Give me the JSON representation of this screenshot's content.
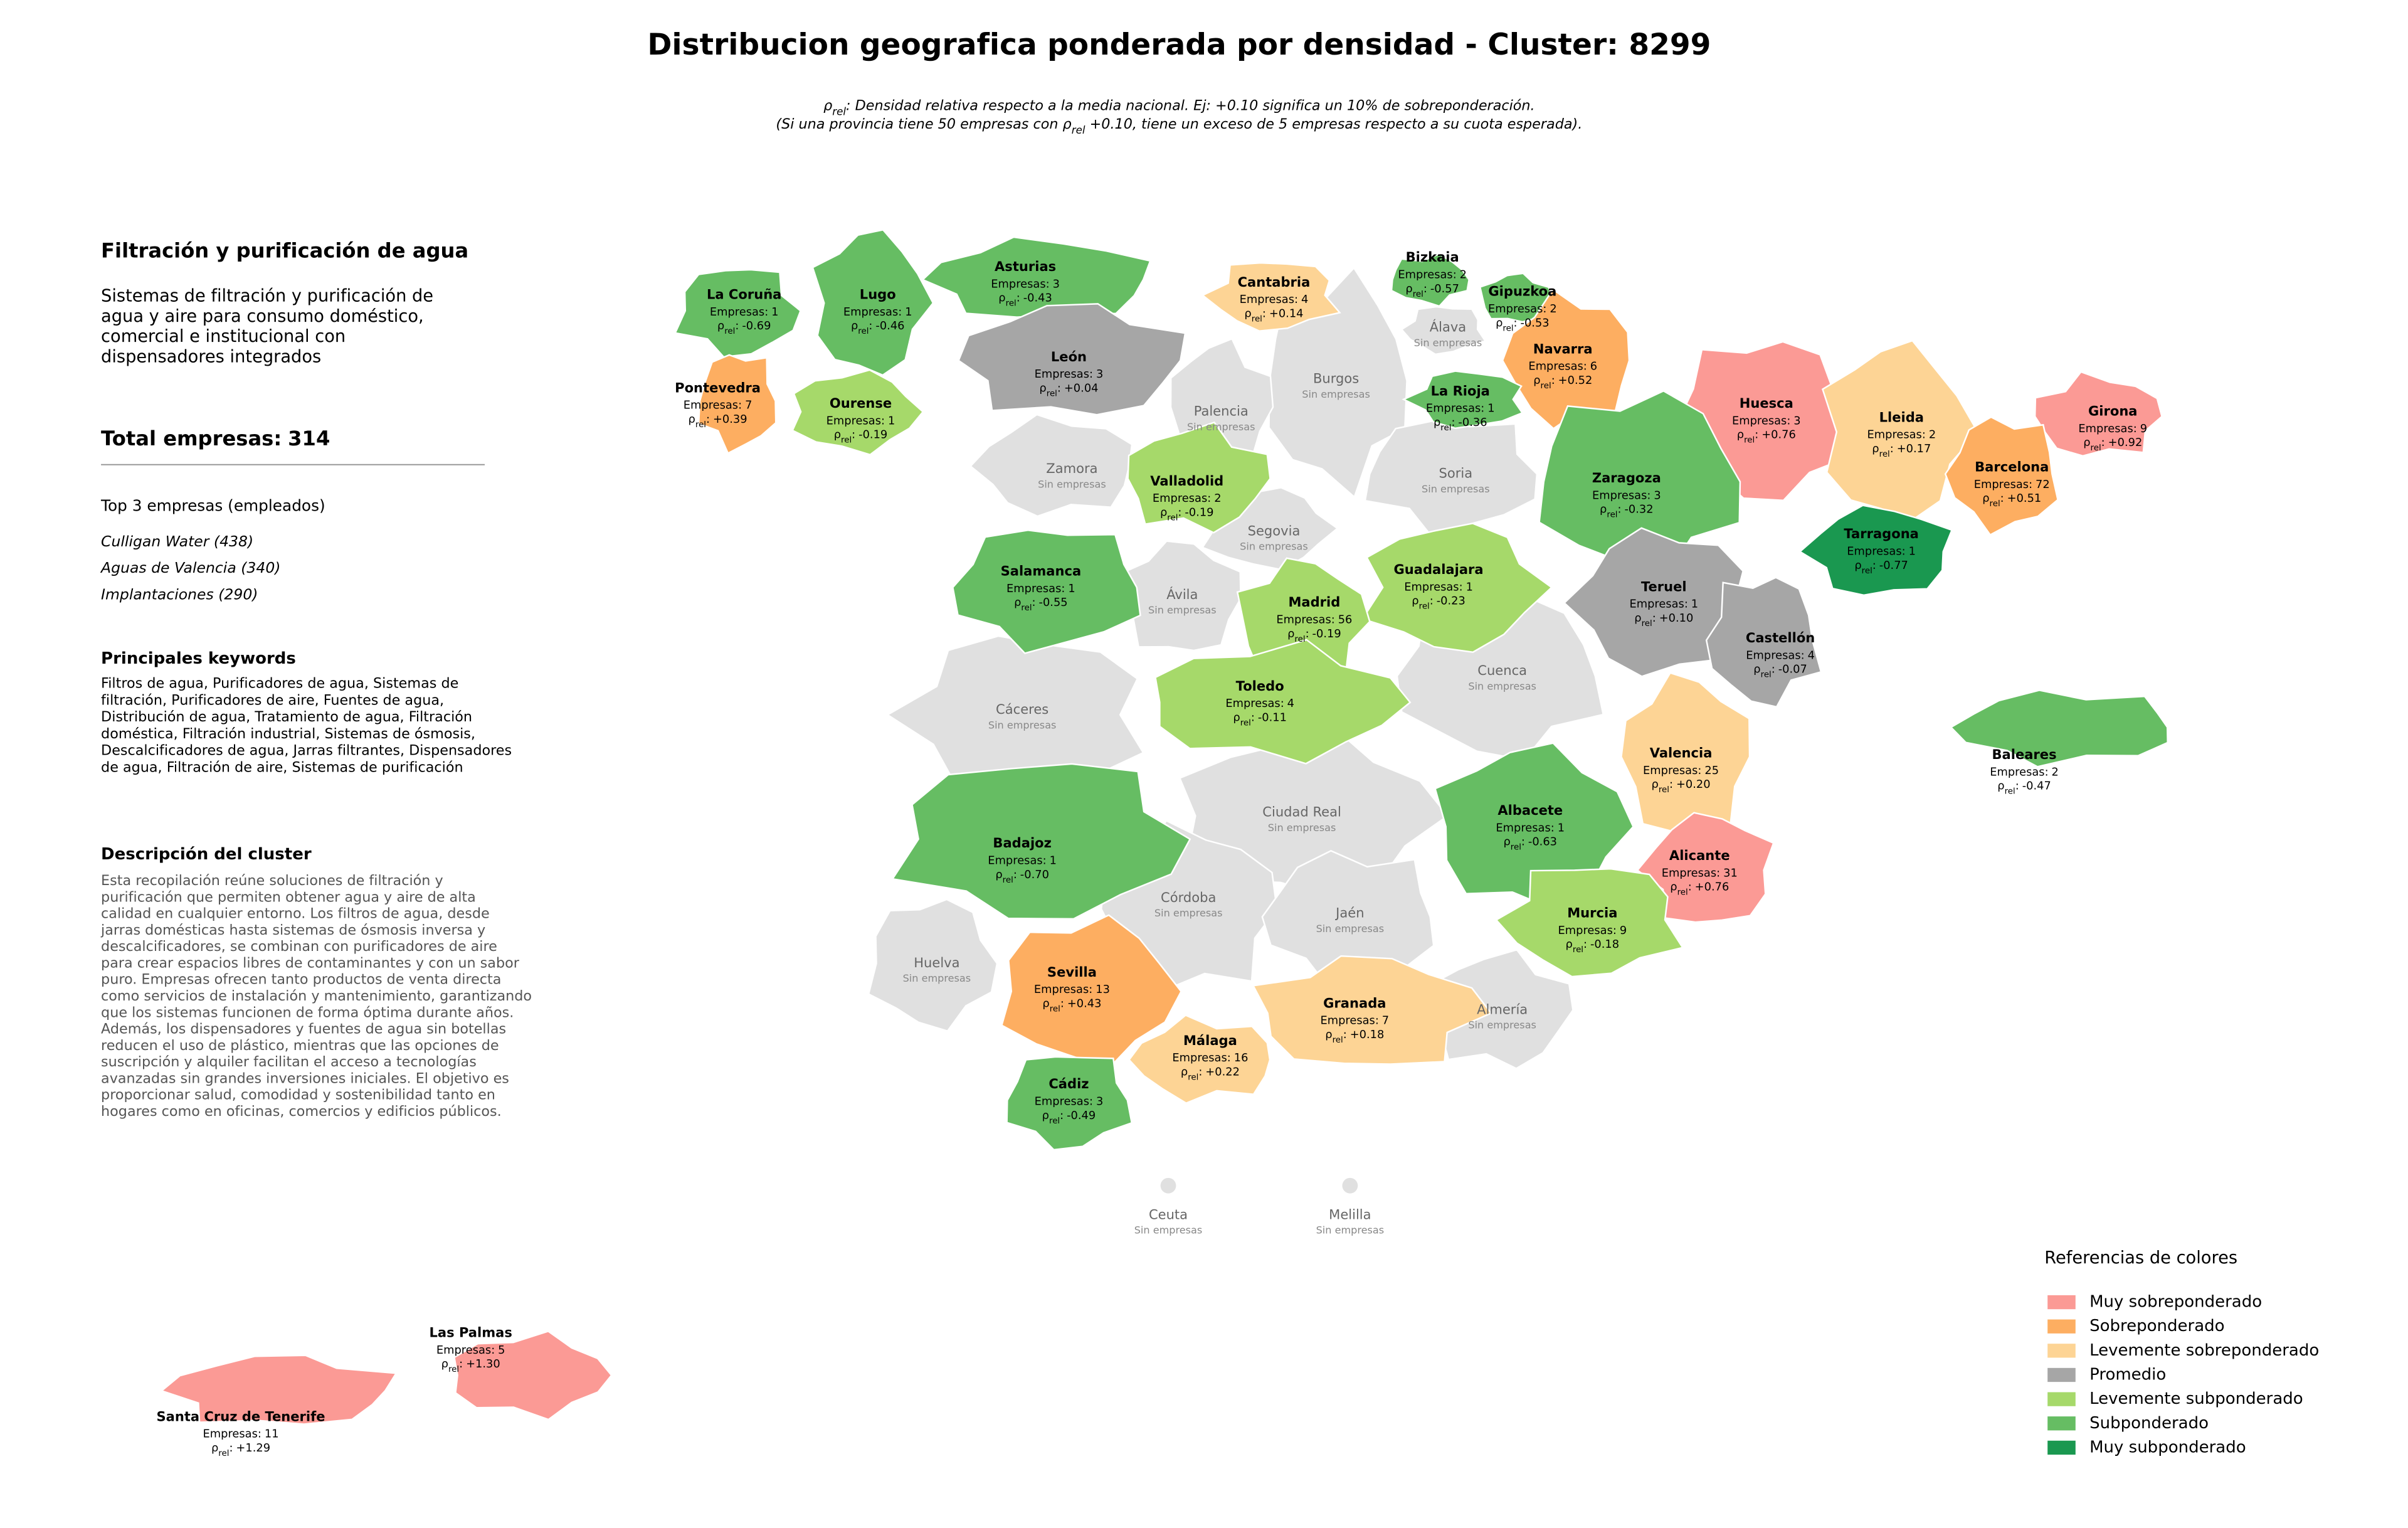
{
  "title": "Distribucion geografica ponderada por densidad - Cluster: 8299",
  "notes": [
    {
      "pre": "ρ",
      "sub": "rel",
      "post": ": Densidad relativa respecto a la media nacional. Ej: +0.10 significa un 10% de sobreponderación."
    },
    {
      "pre": "(Si una provincia tiene 50 empresas con ρ",
      "sub": "rel",
      "post": " +0.10, tiene un exceso de 5 empresas respecto a su cuota esperada)."
    }
  ],
  "panel": {
    "title": "Filtración y purificación de agua",
    "summary": [
      "Sistemas de filtración y purificación de",
      "agua y aire para consumo doméstico,",
      "comercial e institucional con",
      "dispensadores integrados"
    ],
    "total_label": "Total empresas:",
    "total": 314,
    "top_heading": "Top 3 empresas (empleados)",
    "top": [
      "Culligan Water (438)",
      "Aguas de Valencia (340)",
      "Implantaciones (290)"
    ],
    "keywords_heading": "Principales keywords",
    "keywords": [
      "Filtros de agua, Purificadores de agua, Sistemas de",
      "filtración, Purificadores de aire, Fuentes de agua,",
      "Distribución de agua, Tratamiento de agua, Filtración",
      "doméstica, Filtración industrial, Sistemas de ósmosis,",
      "Descalcificadores de agua, Jarras filtrantes, Dispensadores",
      "de agua, Filtración de aire, Sistemas de purificación"
    ],
    "description_heading": "Descripción del cluster",
    "description": [
      "Esta recopilación reúne soluciones de filtración y",
      "purificación que permiten obtener agua y aire de alta",
      "calidad en cualquier entorno. Los filtros de agua, desde",
      "jarras domésticas hasta sistemas de ósmosis inversa y",
      "descalcificadores, se combinan con purificadores de aire",
      "para crear espacios libres de contaminantes y con un sabor",
      "puro. Empresas ofrecen tanto productos de venta directa",
      "como servicios de instalación y mantenimiento, garantizando",
      "que los sistemas funcionen de forma óptima durante años.",
      "Además, los dispensadores y fuentes de agua sin botellas",
      "reducen el uso de plástico, mientras que las opciones de",
      "suscripción y alquiler facilitan el acceso a tecnologías",
      "avanzadas sin grandes inversiones iniciales. El objetivo es",
      "proporcionar salud, comodidad y sostenibilidad tanto en",
      "hogares como en oficinas, comercios y edificios públicos."
    ]
  },
  "map": {
    "empresas_label": "Empresas:",
    "rho_symbol": "ρ",
    "rho_sub": "rel",
    "rho_colon": ":",
    "no_data_label": "Sin empresas",
    "no_data_color": "#e0e0e0",
    "provinces": [
      {
        "name": "La Coruña",
        "empresas": 1,
        "rho": -0.69,
        "rho_label": "-0.69",
        "color": "#66bd63"
      },
      {
        "name": "Lugo",
        "empresas": 1,
        "rho": -0.46,
        "rho_label": "-0.46",
        "color": "#66bd63"
      },
      {
        "name": "Asturias",
        "empresas": 3,
        "rho": -0.43,
        "rho_label": "-0.43",
        "color": "#66bd63"
      },
      {
        "name": "Cantabria",
        "empresas": 4,
        "rho": 0.14,
        "rho_label": "+0.14",
        "color": "#fdd495"
      },
      {
        "name": "Bizkaia",
        "empresas": 2,
        "rho": -0.57,
        "rho_label": "-0.57",
        "color": "#66bd63"
      },
      {
        "name": "Gipuzkoa",
        "empresas": 2,
        "rho": -0.53,
        "rho_label": "-0.53",
        "color": "#66bd63"
      },
      {
        "name": "Navarra",
        "empresas": 6,
        "rho": 0.52,
        "rho_label": "+0.52",
        "color": "#fdae61"
      },
      {
        "name": "Pontevedra",
        "empresas": 7,
        "rho": 0.39,
        "rho_label": "+0.39",
        "color": "#fdae61"
      },
      {
        "name": "Ourense",
        "empresas": 1,
        "rho": -0.19,
        "rho_label": "-0.19",
        "color": "#a6d96a"
      },
      {
        "name": "León",
        "empresas": 3,
        "rho": 0.04,
        "rho_label": "+0.04",
        "color": "#a6a6a6"
      },
      {
        "name": "La Rioja",
        "empresas": 1,
        "rho": -0.36,
        "rho_label": "-0.36",
        "color": "#66bd63"
      },
      {
        "name": "Huesca",
        "empresas": 3,
        "rho": 0.76,
        "rho_label": "+0.76",
        "color": "#fb9a95"
      },
      {
        "name": "Lleida",
        "empresas": 2,
        "rho": 0.17,
        "rho_label": "+0.17",
        "color": "#fdd495"
      },
      {
        "name": "Girona",
        "empresas": 9,
        "rho": 0.92,
        "rho_label": "+0.92",
        "color": "#fb9a95"
      },
      {
        "name": "Barcelona",
        "empresas": 72,
        "rho": 0.51,
        "rho_label": "+0.51",
        "color": "#fdae61"
      },
      {
        "name": "Zaragoza",
        "empresas": 3,
        "rho": -0.32,
        "rho_label": "-0.32",
        "color": "#66bd63"
      },
      {
        "name": "Valladolid",
        "empresas": 2,
        "rho": -0.19,
        "rho_label": "-0.19",
        "color": "#a6d96a"
      },
      {
        "name": "Tarragona",
        "empresas": 1,
        "rho": -0.77,
        "rho_label": "-0.77",
        "color": "#1a9850"
      },
      {
        "name": "Salamanca",
        "empresas": 1,
        "rho": -0.55,
        "rho_label": "-0.55",
        "color": "#66bd63"
      },
      {
        "name": "Guadalajara",
        "empresas": 1,
        "rho": -0.23,
        "rho_label": "-0.23",
        "color": "#a6d96a"
      },
      {
        "name": "Madrid",
        "empresas": 56,
        "rho": -0.19,
        "rho_label": "-0.19",
        "color": "#a6d96a"
      },
      {
        "name": "Teruel",
        "empresas": 1,
        "rho": 0.1,
        "rho_label": "+0.10",
        "color": "#a6a6a6"
      },
      {
        "name": "Castellón",
        "empresas": 4,
        "rho": -0.07,
        "rho_label": "-0.07",
        "color": "#a6a6a6"
      },
      {
        "name": "Toledo",
        "empresas": 4,
        "rho": -0.11,
        "rho_label": "-0.11",
        "color": "#a6d96a"
      },
      {
        "name": "Valencia",
        "empresas": 25,
        "rho": 0.2,
        "rho_label": "+0.20",
        "color": "#fdd495"
      },
      {
        "name": "Baleares",
        "empresas": 2,
        "rho": -0.47,
        "rho_label": "-0.47",
        "color": "#66bd63"
      },
      {
        "name": "Badajoz",
        "empresas": 1,
        "rho": -0.7,
        "rho_label": "-0.70",
        "color": "#66bd63"
      },
      {
        "name": "Albacete",
        "empresas": 1,
        "rho": -0.63,
        "rho_label": "-0.63",
        "color": "#66bd63"
      },
      {
        "name": "Alicante",
        "empresas": 31,
        "rho": 0.76,
        "rho_label": "+0.76",
        "color": "#fb9a95"
      },
      {
        "name": "Murcia",
        "empresas": 9,
        "rho": -0.18,
        "rho_label": "-0.18",
        "color": "#a6d96a"
      },
      {
        "name": "Sevilla",
        "empresas": 13,
        "rho": 0.43,
        "rho_label": "+0.43",
        "color": "#fdae61"
      },
      {
        "name": "Granada",
        "empresas": 7,
        "rho": 0.18,
        "rho_label": "+0.18",
        "color": "#fdd495"
      },
      {
        "name": "Málaga",
        "empresas": 16,
        "rho": 0.22,
        "rho_label": "+0.22",
        "color": "#fdd495"
      },
      {
        "name": "Cádiz",
        "empresas": 3,
        "rho": -0.49,
        "rho_label": "-0.49",
        "color": "#66bd63"
      },
      {
        "name": "Las Palmas",
        "empresas": 5,
        "rho": 1.3,
        "rho_label": "+1.30",
        "color": "#fb9a95"
      },
      {
        "name": "Santa Cruz de Tenerife",
        "empresas": 11,
        "rho": 1.29,
        "rho_label": "+1.29",
        "color": "#fb9a95"
      }
    ],
    "no_data_provinces": [
      "Álava",
      "Burgos",
      "Palencia",
      "Zamora",
      "Soria",
      "Segovia",
      "Ávila",
      "Cáceres",
      "Cuenca",
      "Ciudad Real",
      "Córdoba",
      "Jaén",
      "Huelva",
      "Almería",
      "Ceuta",
      "Melilla"
    ]
  },
  "legend": {
    "title": "Referencias de colores",
    "items": [
      {
        "name": "Muy sobreponderado",
        "color": "#fb9a95"
      },
      {
        "name": "Sobreponderado",
        "color": "#fdae61"
      },
      {
        "name": "Levemente sobreponderado",
        "color": "#fdd495"
      },
      {
        "name": "Promedio",
        "color": "#a6a6a6"
      },
      {
        "name": "Levemente subponderado",
        "color": "#a6d96a"
      },
      {
        "name": "Subponderado",
        "color": "#66bd63"
      },
      {
        "name": "Muy subponderado",
        "color": "#1a9850"
      }
    ]
  }
}
